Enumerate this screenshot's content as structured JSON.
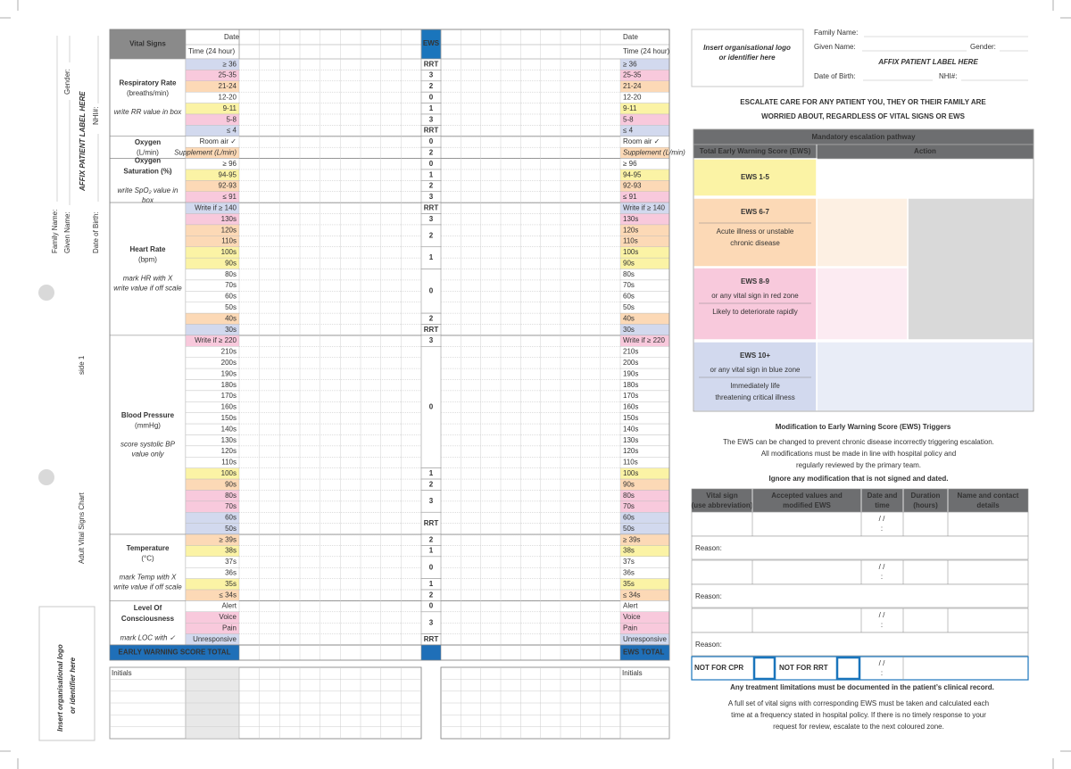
{
  "side": {
    "title": "Adult Vital Signs Chart",
    "subtitle": "side 1",
    "family_name": "Family Name:",
    "given_name": "Given Name:",
    "gender": "Gender:",
    "dob": "Date of Birth:",
    "nhi": "NHI#:",
    "affix": "AFFIX PATIENT LABEL HERE",
    "logo": [
      "Insert organisational logo",
      "or identifier here"
    ]
  },
  "chart": {
    "header": "Vital Signs",
    "date": "Date",
    "time": "Time (24 hour)",
    "ews": "EWS",
    "sections": [
      {
        "title": [
          "Respiratory Rate"
        ],
        "unit": "(breaths/min)",
        "note": [
          "write RR value in box"
        ],
        "rows": [
          {
            "label": "≥ 36",
            "ews": "RRT",
            "color": "#d2d9ee"
          },
          {
            "label": "25-35",
            "ews": 3,
            "color": "#f8c9dc"
          },
          {
            "label": "21-24",
            "ews": 2,
            "color": "#fcd9b6"
          },
          {
            "label": "12-20",
            "ews": 0,
            "color": "#ffffff"
          },
          {
            "label": "9-11",
            "ews": 1,
            "color": "#fbf3a5"
          },
          {
            "label": "5-8",
            "ews": 3,
            "color": "#f8c9dc"
          },
          {
            "label": "≤ 4",
            "ews": "RRT",
            "color": "#d2d9ee"
          }
        ]
      },
      {
        "title": [
          "Oxygen"
        ],
        "unit": "(L/min)",
        "rows": [
          {
            "label": "Room air ✓",
            "ews": 0,
            "color": "#ffffff"
          },
          {
            "label": "Supplement (L/min)",
            "ews": 2,
            "color": "#fcd9b6"
          }
        ]
      },
      {
        "title": [
          "Oxygen",
          "Saturation (%)"
        ],
        "note": [
          "write SpO₂ value in",
          "box"
        ],
        "rows": [
          {
            "label": "≥ 96",
            "ews": 0,
            "color": "#ffffff"
          },
          {
            "label": "94-95",
            "ews": 1,
            "color": "#fbf3a5"
          },
          {
            "label": "92-93",
            "ews": 2,
            "color": "#fcd9b6"
          },
          {
            "label": "≤ 91",
            "ews": 3,
            "color": "#f8c9dc"
          }
        ]
      },
      {
        "title": [
          "Heart Rate"
        ],
        "unit": "(bpm)",
        "note": [
          "mark HR with X",
          "write value if off scale"
        ],
        "rows": [
          {
            "label": "Write if ≥ 140",
            "ews": "RRT",
            "color": "#d2d9ee"
          },
          {
            "label": "130s",
            "ews": 3,
            "color": "#f8c9dc"
          },
          {
            "label": "120s",
            "ews": 2,
            "color": "#fcd9b6"
          },
          {
            "label": "110s",
            "ews": null,
            "color": "#fcd9b6"
          },
          {
            "label": "100s",
            "ews": 1,
            "color": "#fbf3a5"
          },
          {
            "label": "90s",
            "ews": null,
            "color": "#fbf3a5"
          },
          {
            "label": "80s",
            "ews": 0,
            "color": "#ffffff"
          },
          {
            "label": "70s",
            "ews": null,
            "color": "#ffffff"
          },
          {
            "label": "60s",
            "ews": null,
            "color": "#ffffff"
          },
          {
            "label": "50s",
            "ews": null,
            "color": "#ffffff"
          },
          {
            "label": "40s",
            "ews": 2,
            "color": "#fcd9b6"
          },
          {
            "label": "30s",
            "ews": "RRT",
            "color": "#d2d9ee"
          }
        ]
      },
      {
        "title": [
          "Blood Pressure"
        ],
        "unit": "(mmHg)",
        "note": [
          "score systolic BP",
          "value only"
        ],
        "rows": [
          {
            "label": "Write if ≥ 220",
            "ews": 3,
            "color": "#f8c9dc"
          },
          {
            "label": "210s",
            "ews": 0,
            "color": "#ffffff"
          },
          {
            "label": "200s",
            "ews": null,
            "color": "#ffffff"
          },
          {
            "label": "190s",
            "ews": null,
            "color": "#ffffff"
          },
          {
            "label": "180s",
            "ews": null,
            "color": "#ffffff"
          },
          {
            "label": "170s",
            "ews": null,
            "color": "#ffffff"
          },
          {
            "label": "160s",
            "ews": null,
            "color": "#ffffff"
          },
          {
            "label": "150s",
            "ews": null,
            "color": "#ffffff"
          },
          {
            "label": "140s",
            "ews": null,
            "color": "#ffffff"
          },
          {
            "label": "130s",
            "ews": null,
            "color": "#ffffff"
          },
          {
            "label": "120s",
            "ews": null,
            "color": "#ffffff"
          },
          {
            "label": "110s",
            "ews": null,
            "color": "#ffffff"
          },
          {
            "label": "100s",
            "ews": 1,
            "color": "#fbf3a5"
          },
          {
            "label": "90s",
            "ews": 2,
            "color": "#fcd9b6"
          },
          {
            "label": "80s",
            "ews": 3,
            "color": "#f8c9dc"
          },
          {
            "label": "70s",
            "ews": null,
            "color": "#f8c9dc"
          },
          {
            "label": "60s",
            "ews": "RRT",
            "color": "#d2d9ee"
          },
          {
            "label": "50s",
            "ews": null,
            "color": "#d2d9ee"
          }
        ]
      },
      {
        "title": [
          "Temperature"
        ],
        "unit": "(°C)",
        "note": [
          "mark Temp with X",
          "write value if off scale"
        ],
        "rows": [
          {
            "label": "≥ 39s",
            "ews": 2,
            "color": "#fcd9b6"
          },
          {
            "label": "38s",
            "ews": 1,
            "color": "#fbf3a5"
          },
          {
            "label": "37s",
            "ews": 0,
            "color": "#ffffff"
          },
          {
            "label": "36s",
            "ews": null,
            "color": "#ffffff"
          },
          {
            "label": "35s",
            "ews": 1,
            "color": "#fbf3a5"
          },
          {
            "label": "≤ 34s",
            "ews": 2,
            "color": "#fcd9b6"
          }
        ]
      },
      {
        "title": [
          "Level Of",
          "Consciousness"
        ],
        "note": [
          "mark LOC with ✓"
        ],
        "rows": [
          {
            "label": "Alert",
            "ews": 0,
            "color": "#ffffff"
          },
          {
            "label": "Voice",
            "ews": 3,
            "color": "#f8c9dc"
          },
          {
            "label": "Pain",
            "ews": null,
            "color": "#f8c9dc"
          },
          {
            "label": "Unresponsive",
            "ews": "RRT",
            "color": "#d2d9ee"
          }
        ]
      }
    ],
    "total_left": "EARLY WARNING SCORE TOTAL",
    "total_right": "EWS TOTAL",
    "initials": "Initials"
  },
  "patient": {
    "logo": [
      "Insert organisational logo",
      "or identifier here"
    ],
    "family_name": "Family Name:",
    "given_name": "Given Name:",
    "gender": "Gender:",
    "affix": "AFFIX PATIENT LABEL HERE",
    "dob": "Date of Birth:",
    "nhi": "NHI#:"
  },
  "escalate": [
    "ESCALATE CARE FOR ANY PATIENT YOU, THEY OR THEIR FAMILY ARE",
    "WORRIED ABOUT, REGARDLESS OF VITAL SIGNS OR EWS"
  ],
  "pathway": {
    "title": "Mandatory escalation pathway",
    "score_header": "Total Early Warning Score (EWS)",
    "action_header": "Action",
    "rows": [
      {
        "score": "EWS 1-5",
        "color": "#fbf3a5"
      },
      {
        "score": "EWS 6-7",
        "desc": [
          "Acute illness or unstable",
          "chronic disease"
        ],
        "color": "#fcd9b6"
      },
      {
        "score": "EWS 8-9",
        "sub": "or any vital sign in red zone",
        "desc": [
          "Likely to deteriorate rapidly"
        ],
        "color": "#f8c9dc"
      },
      {
        "score": "EWS 10+",
        "sub": "or any vital sign in blue zone",
        "desc": [
          "Immediately life",
          "threatening critical illness"
        ],
        "color": "#d2d9ee"
      }
    ]
  },
  "modification": {
    "title": "Modification to Early Warning Score (EWS) Triggers",
    "intro": [
      "The EWS can be changed to prevent chronic disease incorrectly triggering escalation.",
      "All modifications must be made in line with hospital policy and",
      "regularly reviewed by the primary team."
    ],
    "warning": "Ignore any modification that is not signed and dated.",
    "headers": [
      [
        "Vital sign",
        "(use abbreviation)"
      ],
      [
        "Accepted values and",
        "modified EWS"
      ],
      [
        "Date and",
        "time"
      ],
      [
        "Duration",
        "(hours)"
      ],
      [
        "Name and contact",
        "details"
      ]
    ],
    "reason": "Reason:",
    "date_mask": "/     /",
    "time_mask": ":",
    "not_cpr": "NOT FOR CPR",
    "not_rrt": "NOT FOR RRT"
  },
  "limitations": "Any treatment limitations must be documented in the patient’s clinical record.",
  "footer": [
    "A full set of vital signs with corresponding EWS must be taken and calculated each",
    "time at a frequency stated in hospital policy. If there is no timely response to your",
    "request for review, escalate to the next coloured zone."
  ]
}
